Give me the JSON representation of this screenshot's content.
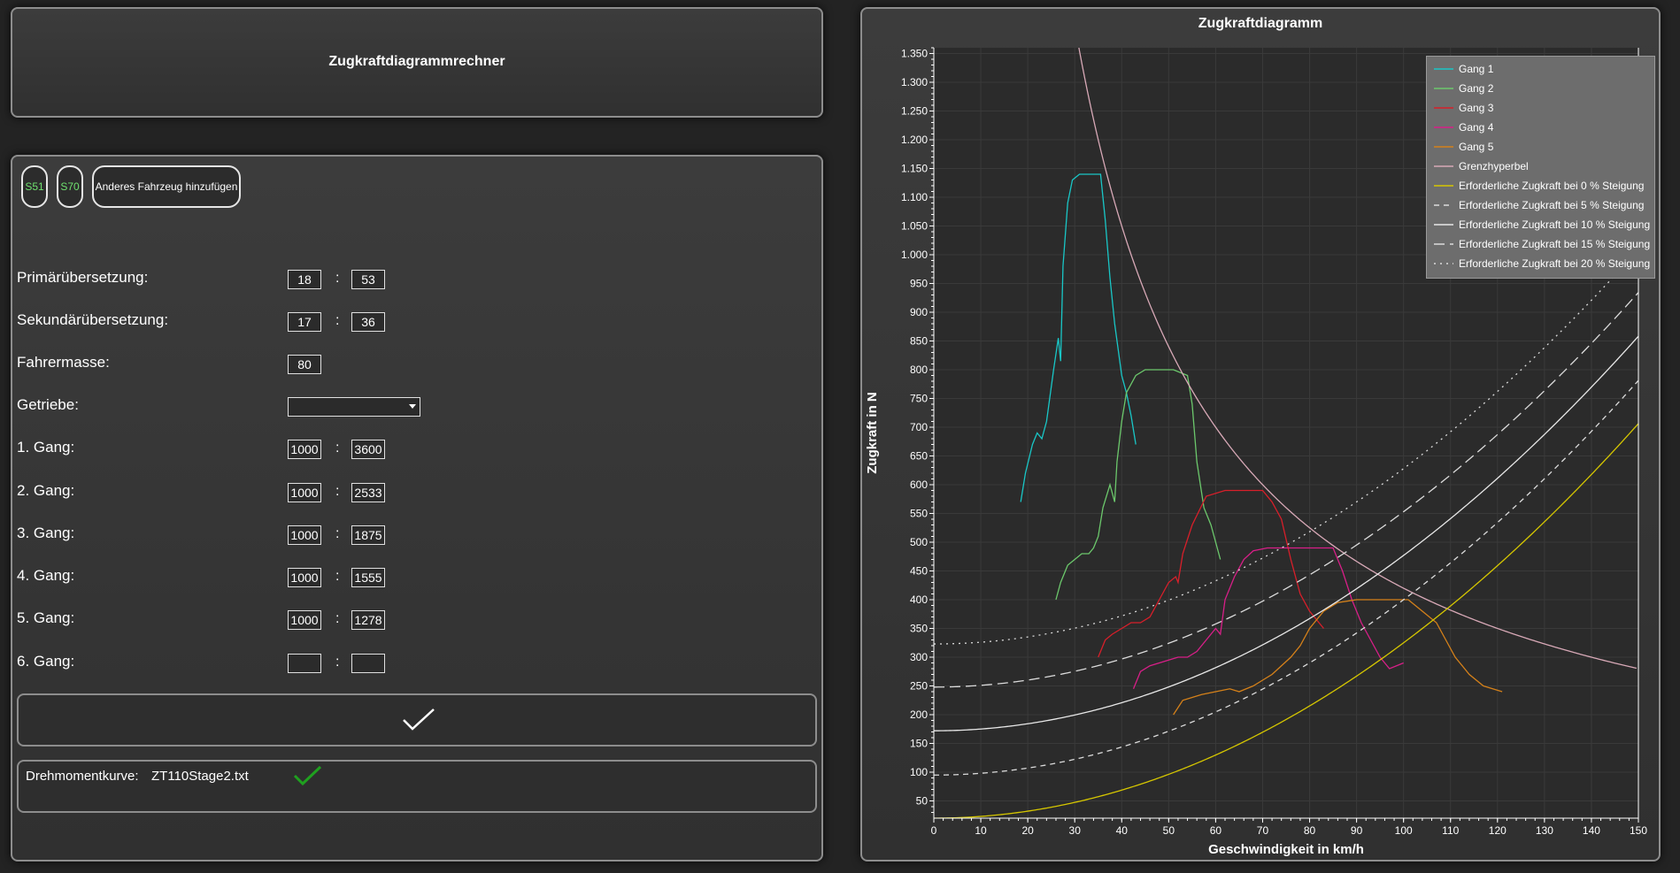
{
  "app": {
    "title": "Zugkraftdiagrammrechner"
  },
  "vehicles": {
    "buttons": [
      {
        "label": "S51",
        "color": "#6fe06f"
      },
      {
        "label": "S70",
        "color": "#6fe06f"
      }
    ],
    "add_label": "Anderes Fahrzeug hinzufügen"
  },
  "form": {
    "primary": {
      "label": "Primärübersetzung:",
      "a": "18",
      "b": "53"
    },
    "secondary": {
      "label": "Sekundärübersetzung:",
      "a": "17",
      "b": "36"
    },
    "rider_mass": {
      "label": "Fahrermasse:",
      "value": "80"
    },
    "gearbox": {
      "label": "Getriebe:",
      "value": ""
    },
    "gears": [
      {
        "label": "1. Gang:",
        "a": "1000",
        "b": "3600"
      },
      {
        "label": "2. Gang:",
        "a": "1000",
        "b": "2533"
      },
      {
        "label": "3. Gang:",
        "a": "1000",
        "b": "1875"
      },
      {
        "label": "4. Gang:",
        "a": "1000",
        "b": "1555"
      },
      {
        "label": "5. Gang:",
        "a": "1000",
        "b": "1278"
      },
      {
        "label": "6. Gang:",
        "a": "",
        "b": ""
      }
    ],
    "colon": ":"
  },
  "torque": {
    "label": "Drehmomentkurve:",
    "file": "ZT110Stage2.txt",
    "status_icon": "check-icon",
    "status_color": "#1fa01f"
  },
  "chart_data": {
    "type": "line",
    "title": "Zugkraftdiagramm",
    "xlabel": "Geschwindigkeit in km/h",
    "ylabel": "Zugkraft in N",
    "xlim": [
      0,
      150
    ],
    "ylim": [
      20,
      1360
    ],
    "x_ticks": [
      0,
      10,
      20,
      30,
      40,
      50,
      60,
      70,
      80,
      90,
      100,
      110,
      120,
      130,
      140,
      150
    ],
    "y_ticks": [
      50,
      100,
      150,
      200,
      250,
      300,
      350,
      400,
      450,
      500,
      550,
      600,
      650,
      700,
      750,
      800,
      850,
      900,
      950,
      1000,
      1050,
      1100,
      1150,
      1200,
      1250,
      1300,
      1350
    ],
    "y_tick_labels": [
      "50",
      "100",
      "150",
      "200",
      "250",
      "300",
      "350",
      "400",
      "450",
      "500",
      "550",
      "600",
      "650",
      "700",
      "750",
      "800",
      "850",
      "900",
      "950",
      "1.000",
      "1.050",
      "1.100",
      "1.150",
      "1.200",
      "1.250",
      "1.300",
      "1.350"
    ],
    "grid": true,
    "legend_position": "top-right",
    "series": [
      {
        "name": "Gang 1",
        "color": "#19c7c7",
        "dash": "",
        "x": [
          18.5,
          19.5,
          21,
          22,
          23,
          24,
          25.5,
          26.5,
          27,
          27.5,
          28.5,
          29.5,
          31,
          32,
          34,
          35.5,
          36.5,
          37.5,
          38.5,
          40,
          41,
          42,
          43
        ],
        "y": [
          570,
          620,
          670,
          690,
          680,
          710,
          800,
          855,
          815,
          980,
          1090,
          1130,
          1140,
          1140,
          1140,
          1140,
          1060,
          960,
          880,
          790,
          760,
          720,
          670
        ]
      },
      {
        "name": "Gang 2",
        "color": "#6cc86c",
        "dash": "",
        "x": [
          26,
          27,
          28.5,
          30,
          31.5,
          33,
          34,
          35,
          36,
          37.5,
          38.5,
          39,
          40,
          41,
          43,
          45,
          48,
          51,
          54,
          55,
          56,
          57.5,
          59,
          61
        ],
        "y": [
          400,
          430,
          460,
          470,
          480,
          480,
          490,
          510,
          560,
          600,
          570,
          640,
          710,
          760,
          790,
          800,
          800,
          800,
          790,
          740,
          640,
          560,
          530,
          470
        ]
      },
      {
        "name": "Gang 3",
        "color": "#d81f2a",
        "dash": "",
        "x": [
          35,
          36.5,
          38,
          40,
          42,
          44,
          46,
          48,
          50,
          51.5,
          52,
          53,
          55,
          58,
          62,
          66,
          70,
          72,
          74,
          76,
          78,
          80,
          83
        ],
        "y": [
          300,
          330,
          340,
          350,
          360,
          360,
          370,
          400,
          430,
          440,
          430,
          480,
          530,
          580,
          590,
          590,
          590,
          570,
          540,
          470,
          410,
          380,
          350
        ]
      },
      {
        "name": "Gang 4",
        "color": "#d81f88",
        "dash": "",
        "x": [
          42.5,
          44,
          46,
          48,
          50,
          52,
          54,
          56,
          58,
          60,
          61,
          62,
          64,
          66,
          68,
          71,
          75,
          80,
          85,
          87,
          89,
          91,
          93,
          95,
          97,
          100
        ],
        "y": [
          245,
          275,
          285,
          290,
          295,
          300,
          300,
          310,
          330,
          350,
          340,
          400,
          440,
          470,
          485,
          490,
          490,
          490,
          490,
          450,
          400,
          360,
          330,
          300,
          280,
          290
        ]
      },
      {
        "name": "Gang 5",
        "color": "#d5811a",
        "dash": "",
        "x": [
          51,
          53,
          55,
          57,
          60,
          63,
          65,
          68,
          70,
          72,
          74,
          76,
          78,
          80,
          83,
          86,
          90,
          94,
          98,
          101,
          104,
          107,
          109,
          111,
          114,
          117,
          121
        ],
        "y": [
          200,
          225,
          230,
          235,
          240,
          245,
          240,
          250,
          260,
          270,
          285,
          300,
          320,
          350,
          380,
          395,
          400,
          400,
          400,
          400,
          380,
          360,
          330,
          300,
          270,
          250,
          240
        ]
      },
      {
        "name": "Grenzhyperbel",
        "color": "#d8a9b7",
        "dash": "",
        "formula": "42000/v",
        "x_range": [
          30.6,
          150
        ]
      },
      {
        "name": "Erforderliche Zugkraft bei 0 % Steigung",
        "color": "#d6c700",
        "dash": "",
        "formula": "20+0.0305*v^2"
      },
      {
        "name": "Erforderliche Zugkraft bei 5 % Steigung",
        "color": "#dcdcdc",
        "dash": "6,5",
        "formula": "95+0.0305*v^2"
      },
      {
        "name": "Erforderliche Zugkraft bei 10 % Steigung",
        "color": "#e8e8e8",
        "dash": "",
        "formula": "172+0.0305*v^2"
      },
      {
        "name": "Erforderliche Zugkraft bei 15 % Steigung",
        "color": "#dcdcdc",
        "dash": "12,6",
        "formula": "248+0.0305*v^2"
      },
      {
        "name": "Erforderliche Zugkraft bei 20 % Steigung",
        "color": "#dcdcdc",
        "dash": "2,5",
        "formula": "323+0.0305*v^2"
      }
    ]
  }
}
